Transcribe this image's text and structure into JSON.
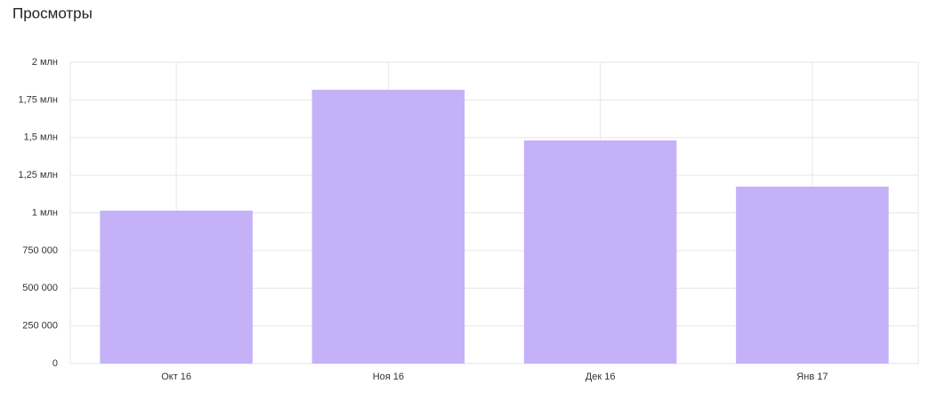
{
  "chart_data": {
    "type": "bar",
    "title": "Просмотры",
    "categories": [
      "Окт 16",
      "Ноя 16",
      "Дек 16",
      "Янв 17"
    ],
    "values": [
      1015000,
      1817000,
      1481000,
      1174000
    ],
    "color": "#c5b1f8",
    "ylim": [
      0,
      2000000
    ],
    "yticks": [
      0,
      {
        "value": 250000,
        "label": "250 000"
      },
      {
        "value": 500000,
        "label": "500 000"
      },
      {
        "value": 750000,
        "label": "750 000"
      },
      {
        "value": 1000000,
        "label": "1 млн"
      },
      {
        "value": 1250000,
        "label": "1,25 млн"
      },
      {
        "value": 1500000,
        "label": "1,5 млн"
      },
      {
        "value": 1750000,
        "label": "1,75 млн"
      },
      {
        "value": 2000000,
        "label": "2 млн"
      }
    ],
    "grid": true
  }
}
